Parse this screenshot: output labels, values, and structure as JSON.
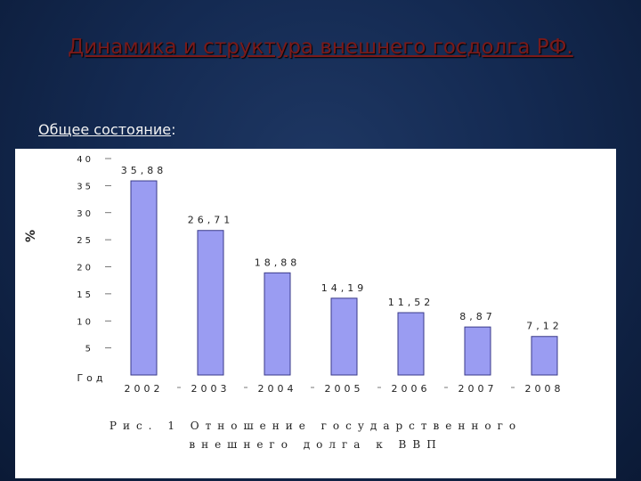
{
  "slide": {
    "title": "Динамика и структура внешнего госдолга РФ.",
    "subtitle": "Общее состояние",
    "subtitle_suffix": ":"
  },
  "chart_data": {
    "type": "bar",
    "categories": [
      "2002",
      "2003",
      "2004",
      "2005",
      "2006",
      "2007",
      "2008"
    ],
    "values": [
      35.88,
      26.71,
      18.88,
      14.19,
      11.52,
      8.87,
      7.12
    ],
    "value_labels": [
      "35,88",
      "26,71",
      "18,88",
      "14,19",
      "11,52",
      "8,87",
      "7,12"
    ],
    "ylabel": "%",
    "xlabel": "Год",
    "ylim": [
      0,
      40
    ],
    "yticks": [
      40,
      35,
      30,
      25,
      20,
      15,
      10,
      5
    ],
    "grid": false,
    "bar_color": "#9a9cf2",
    "caption_line1": "Рис. 1  Отношение государственного",
    "caption_line2": "внешнего долга к ВВП"
  },
  "colors": {
    "title": "#7a1a1a",
    "background": "#142a52",
    "bar_fill": "#9a9cf2"
  }
}
